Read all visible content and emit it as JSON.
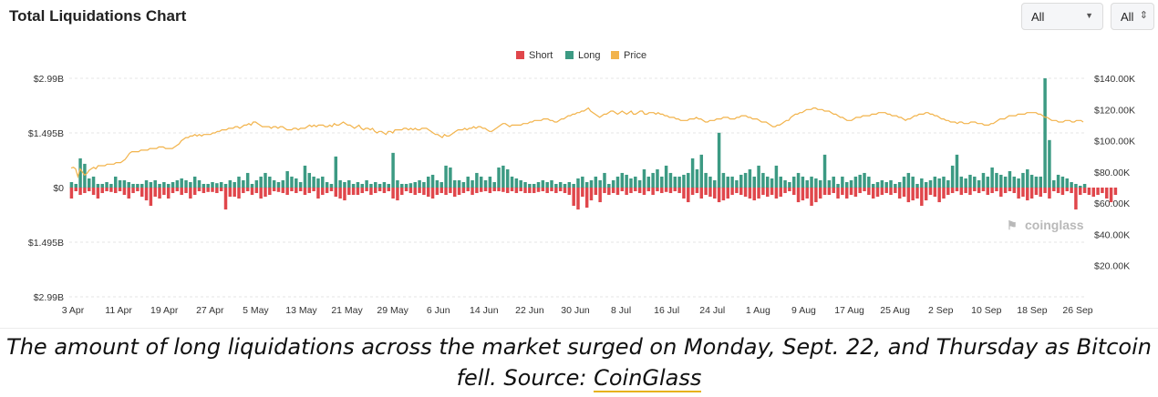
{
  "header": {
    "title": "Total Liquidations Chart"
  },
  "controls": {
    "range_select": "All",
    "coin_select": "All"
  },
  "colors": {
    "short": "#e0464b",
    "long": "#3c9a83",
    "price": "#f2b34b",
    "grid": "#e6e6e6",
    "axis_text": "#333333"
  },
  "chart_data": {
    "type": "bar",
    "title": "Total Liquidations Chart",
    "legend": {
      "position": "top-center",
      "entries": [
        "Short",
        "Long",
        "Price"
      ]
    },
    "y_left": {
      "ticks": [
        "$2.99B",
        "$1.495B",
        "$0",
        "$1.495B",
        "$2.99B"
      ],
      "range": [
        -2.99,
        2.99
      ],
      "unit": "B USD"
    },
    "y_right": {
      "ticks": [
        "$140.00K",
        "$120.00K",
        "$100.00K",
        "$80.00K",
        "$60.00K",
        "$40.00K",
        "$20.00K"
      ],
      "range": [
        0,
        140
      ]
    },
    "x_ticks": [
      "3 Apr",
      "11 Apr",
      "19 Apr",
      "27 Apr",
      "5 May",
      "13 May",
      "21 May",
      "29 May",
      "6 Jun",
      "14 Jun",
      "22 Jun",
      "30 Jun",
      "8 Jul",
      "16 Jul",
      "24 Jul",
      "1 Aug",
      "9 Aug",
      "17 Aug",
      "25 Aug",
      "2 Sep",
      "10 Sep",
      "18 Sep",
      "26 Sep"
    ],
    "grid": true,
    "watermark": "coinglass",
    "series": [
      {
        "name": "Long",
        "values": [
          0.15,
          0.1,
          0.8,
          0.65,
          0.25,
          0.3,
          0.1,
          0.1,
          0.15,
          0.1,
          0.3,
          0.2,
          0.2,
          0.15,
          0.1,
          0.1,
          0.1,
          0.2,
          0.15,
          0.2,
          0.1,
          0.15,
          0.1,
          0.15,
          0.2,
          0.25,
          0.2,
          0.15,
          0.3,
          0.2,
          0.1,
          0.1,
          0.15,
          0.12,
          0.15,
          0.1,
          0.2,
          0.15,
          0.3,
          0.2,
          0.4,
          0.1,
          0.2,
          0.3,
          0.4,
          0.3,
          0.2,
          0.15,
          0.2,
          0.45,
          0.3,
          0.25,
          0.15,
          0.6,
          0.4,
          0.3,
          0.25,
          0.3,
          0.15,
          0.1,
          0.85,
          0.2,
          0.15,
          0.2,
          0.1,
          0.15,
          0.1,
          0.2,
          0.1,
          0.15,
          0.1,
          0.15,
          0.1,
          0.95,
          0.2,
          0.1,
          0.1,
          0.12,
          0.15,
          0.2,
          0.15,
          0.3,
          0.35,
          0.2,
          0.15,
          0.6,
          0.55,
          0.2,
          0.2,
          0.15,
          0.3,
          0.2,
          0.4,
          0.3,
          0.2,
          0.3,
          0.15,
          0.55,
          0.6,
          0.5,
          0.3,
          0.25,
          0.2,
          0.15,
          0.1,
          0.1,
          0.15,
          0.2,
          0.15,
          0.2,
          0.1,
          0.15,
          0.1,
          0.15,
          0.1,
          0.25,
          0.3,
          0.15,
          0.2,
          0.3,
          0.2,
          0.4,
          0.1,
          0.2,
          0.3,
          0.4,
          0.35,
          0.25,
          0.3,
          0.2,
          0.5,
          0.3,
          0.4,
          0.5,
          0.3,
          0.6,
          0.4,
          0.3,
          0.3,
          0.35,
          0.4,
          0.8,
          0.5,
          0.9,
          0.4,
          0.3,
          0.2,
          1.5,
          0.4,
          0.3,
          0.3,
          0.2,
          0.35,
          0.4,
          0.5,
          0.3,
          0.6,
          0.4,
          0.3,
          0.25,
          0.6,
          0.3,
          0.2,
          0.15,
          0.3,
          0.4,
          0.3,
          0.2,
          0.3,
          0.25,
          0.2,
          0.9,
          0.2,
          0.3,
          0.1,
          0.3,
          0.15,
          0.2,
          0.3,
          0.35,
          0.4,
          0.3,
          0.1,
          0.15,
          0.2,
          0.15,
          0.2,
          0.1,
          0.15,
          0.3,
          0.4,
          0.3,
          0.1,
          0.25,
          0.15,
          0.2,
          0.3,
          0.25,
          0.3,
          0.2,
          0.6,
          0.9,
          0.3,
          0.25,
          0.35,
          0.3,
          0.2,
          0.4,
          0.3,
          0.55,
          0.4,
          0.35,
          0.3,
          0.45,
          0.3,
          0.25,
          0.4,
          0.5,
          0.35,
          0.3,
          0.3,
          2.99,
          1.3,
          0.2,
          0.35,
          0.3,
          0.25,
          0.15,
          0.1,
          0.05,
          0.1
        ],
        "color": "#3c9a83"
      },
      {
        "name": "Short",
        "values": [
          0.3,
          0.1,
          0.2,
          0.15,
          0.1,
          0.2,
          0.3,
          0.15,
          0.1,
          0.12,
          0.15,
          0.1,
          0.2,
          0.3,
          0.15,
          0.1,
          0.25,
          0.35,
          0.5,
          0.25,
          0.3,
          0.2,
          0.3,
          0.15,
          0.1,
          0.2,
          0.15,
          0.3,
          0.2,
          0.1,
          0.15,
          0.12,
          0.12,
          0.15,
          0.1,
          0.6,
          0.25,
          0.25,
          0.3,
          0.15,
          0.1,
          0.2,
          0.15,
          0.3,
          0.25,
          0.2,
          0.1,
          0.12,
          0.15,
          0.2,
          0.1,
          0.15,
          0.1,
          0.2,
          0.15,
          0.1,
          0.3,
          0.2,
          0.15,
          0.1,
          0.25,
          0.3,
          0.35,
          0.2,
          0.2,
          0.2,
          0.15,
          0.1,
          0.2,
          0.15,
          0.1,
          0.15,
          0.1,
          0.3,
          0.35,
          0.2,
          0.1,
          0.15,
          0.2,
          0.15,
          0.2,
          0.25,
          0.3,
          0.2,
          0.15,
          0.2,
          0.15,
          0.25,
          0.2,
          0.15,
          0.1,
          0.2,
          0.15,
          0.12,
          0.1,
          0.15,
          0.1,
          0.1,
          0.12,
          0.15,
          0.1,
          0.15,
          0.1,
          0.15,
          0.15,
          0.15,
          0.12,
          0.1,
          0.15,
          0.1,
          0.15,
          0.1,
          0.15,
          0.2,
          0.5,
          0.6,
          0.25,
          0.55,
          0.35,
          0.2,
          0.4,
          0.15,
          0.2,
          0.15,
          0.2,
          0.1,
          0.2,
          0.15,
          0.1,
          0.15,
          0.2,
          0.1,
          0.2,
          0.1,
          0.15,
          0.12,
          0.15,
          0.1,
          0.15,
          0.3,
          0.4,
          0.2,
          0.15,
          0.3,
          0.2,
          0.25,
          0.3,
          0.4,
          0.35,
          0.3,
          0.2,
          0.15,
          0.2,
          0.25,
          0.3,
          0.35,
          0.3,
          0.2,
          0.25,
          0.2,
          0.3,
          0.25,
          0.15,
          0.1,
          0.2,
          0.4,
          0.35,
          0.3,
          0.5,
          0.4,
          0.3,
          0.2,
          0.2,
          0.15,
          0.3,
          0.2,
          0.3,
          0.2,
          0.25,
          0.15,
          0.1,
          0.2,
          0.3,
          0.25,
          0.2,
          0.15,
          0.2,
          0.15,
          0.3,
          0.25,
          0.4,
          0.35,
          0.3,
          0.5,
          0.35,
          0.2,
          0.25,
          0.4,
          0.3,
          0.2,
          0.15,
          0.1,
          0.2,
          0.15,
          0.2,
          0.1,
          0.15,
          0.1,
          0.2,
          0.15,
          0.1,
          0.25,
          0.15,
          0.1,
          0.15,
          0.3,
          0.25,
          0.35,
          0.3,
          0.2,
          0.25,
          0.15,
          0.3,
          0.1,
          0.15,
          0.2,
          0.1,
          0.15,
          0.6,
          0.2,
          0.15,
          0.2,
          0.25,
          0.2,
          0.15,
          0.3,
          0.4,
          0.2
        ],
        "color": "#e0464b"
      },
      {
        "name": "Price",
        "values": [
          82.5,
          83,
          82,
          77,
          82,
          80,
          78,
          79,
          81,
          82,
          83,
          82,
          84,
          84,
          84,
          84,
          85,
          85,
          85,
          85,
          86,
          86,
          86,
          87,
          88,
          90,
          92,
          93,
          93,
          93,
          93,
          94,
          94,
          94,
          94,
          95,
          95,
          95,
          95,
          96,
          96,
          96,
          95,
          95,
          95,
          95,
          96,
          97,
          98,
          100,
          101,
          102,
          102,
          103,
          103,
          104,
          103,
          104,
          103,
          104,
          104,
          104,
          104,
          105,
          105,
          106,
          106,
          107,
          107,
          107,
          108,
          108,
          108,
          109,
          109,
          108,
          109,
          110,
          110,
          111,
          110,
          112,
          112,
          111,
          110,
          109,
          109,
          109,
          109,
          108,
          109,
          109,
          108,
          109,
          109,
          108,
          107,
          107,
          107,
          108,
          108,
          107,
          108,
          108,
          108,
          109,
          110,
          109,
          110,
          109,
          110,
          110,
          110,
          109,
          109,
          110,
          109,
          111,
          110,
          110,
          111,
          112,
          111,
          110,
          110,
          109,
          108,
          109,
          110,
          108,
          107,
          108,
          108,
          107,
          108,
          106,
          105,
          106,
          106,
          105,
          104,
          106,
          106,
          105,
          107,
          107,
          107,
          107,
          108,
          108,
          107,
          108,
          107,
          108,
          107,
          107,
          108,
          108,
          108,
          107,
          106,
          105,
          104,
          104,
          103,
          102,
          104,
          103,
          103,
          104,
          105,
          106,
          107,
          107,
          107,
          108,
          107,
          108,
          108,
          109,
          108,
          109,
          109,
          108,
          108,
          107,
          106,
          106,
          107,
          108,
          109,
          110,
          111,
          111,
          110,
          109,
          110,
          110,
          110,
          110,
          110,
          111,
          111,
          111,
          112,
          112,
          113,
          113,
          113,
          113,
          114,
          114,
          114,
          113,
          113,
          112,
          112,
          113,
          114,
          114,
          115,
          116,
          116,
          117,
          117,
          118,
          118,
          119,
          119,
          120,
          121,
          119,
          118,
          117,
          116,
          115,
          116,
          117,
          117,
          118,
          119,
          119,
          118,
          117,
          118,
          119,
          118,
          117,
          118,
          119,
          117,
          117,
          118,
          119,
          119,
          117,
          117,
          118,
          118,
          118,
          117,
          118,
          117,
          117,
          116,
          116,
          115,
          115,
          115,
          114,
          114,
          113,
          113,
          113,
          113,
          114,
          114,
          114,
          115,
          114,
          114,
          113,
          112,
          112,
          113,
          113,
          113,
          114,
          114,
          114,
          115,
          115,
          115,
          114,
          114,
          114,
          115,
          115,
          116,
          116,
          116,
          115,
          115,
          114,
          114,
          114,
          113,
          112,
          112,
          112,
          111,
          110,
          109,
          109,
          110,
          110,
          111,
          112,
          113,
          113,
          115,
          116,
          117,
          117,
          118,
          118,
          119,
          120,
          120,
          120,
          121,
          121,
          120,
          120,
          120,
          119,
          119,
          119,
          118,
          117,
          117,
          116,
          115,
          115,
          114,
          113,
          113,
          113,
          114,
          115,
          115,
          115,
          116,
          116,
          116,
          116,
          117,
          117,
          117,
          118,
          118,
          118,
          118,
          117,
          117,
          116,
          116,
          116,
          115,
          115,
          114,
          113,
          114,
          114,
          115,
          116,
          116,
          117,
          117,
          117,
          118,
          118,
          117,
          117,
          116,
          116,
          115,
          114,
          114,
          113,
          113,
          112,
          112,
          112,
          111,
          112,
          112,
          111,
          111,
          111,
          112,
          112,
          112,
          111,
          111,
          111,
          110,
          110,
          110,
          111,
          111,
          112,
          113,
          114,
          114,
          114,
          115,
          116,
          116,
          116,
          116,
          117,
          117,
          117,
          117,
          118,
          118,
          118,
          118,
          118,
          117,
          117,
          116,
          115,
          115,
          114,
          113,
          113,
          113,
          112,
          112,
          112,
          113,
          113,
          113,
          112,
          112,
          113,
          113,
          113,
          112
        ],
        "color": "#f2b34b"
      }
    ]
  },
  "caption": {
    "text": "The amount of long liquidations across the market surged on Monday, Sept. 22, and Thursday as Bitcoin fell. Source: ",
    "link": "CoinGlass"
  }
}
